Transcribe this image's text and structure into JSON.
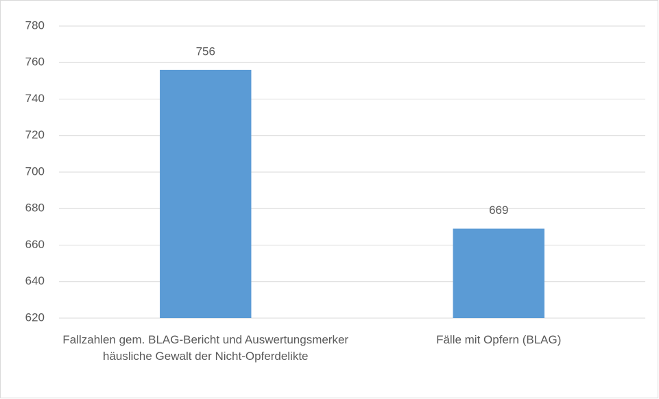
{
  "chart_data": {
    "type": "bar",
    "categories": [
      "Fallzahlen  gem. BLAG-Bericht und Auswertungsmerker häusliche Gewalt der Nicht-Opferdelikte",
      "Fälle mit Opfern (BLAG)"
    ],
    "values": [
      756,
      669
    ],
    "color": "#5b9bd5",
    "ylim": [
      620,
      780
    ],
    "yticks": [
      620,
      640,
      660,
      680,
      700,
      720,
      740,
      760,
      780
    ],
    "grid": true
  }
}
